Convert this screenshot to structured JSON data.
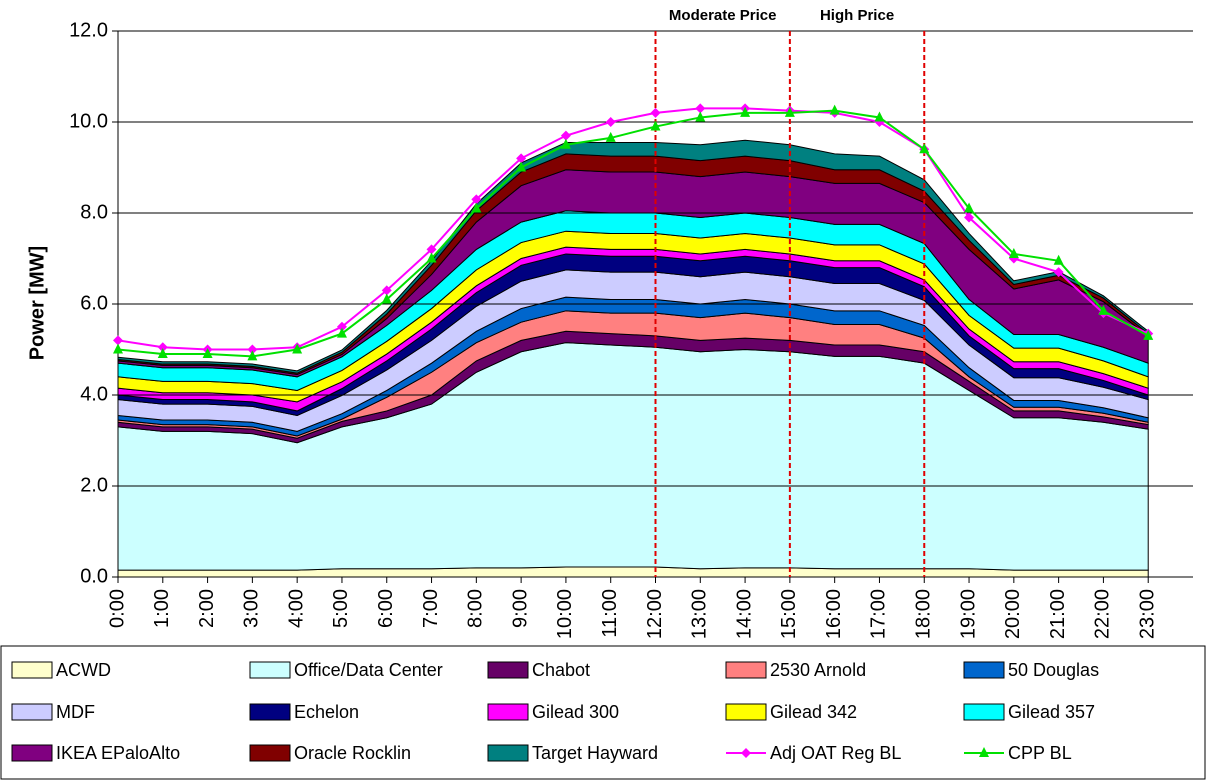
{
  "chart_data": {
    "type": "stacked_area",
    "y_label": "Power [MW]",
    "categories": [
      "0:00",
      "1:00",
      "2:00",
      "3:00",
      "4:00",
      "5:00",
      "6:00",
      "7:00",
      "8:00",
      "9:00",
      "10:00",
      "11:00",
      "12:00",
      "13:00",
      "14:00",
      "15:00",
      "16:00",
      "17:00",
      "18:00",
      "19:00",
      "20:00",
      "21:00",
      "22:00",
      "23:00"
    ],
    "ylim": [
      0,
      12
    ],
    "yticks": [
      {
        "value": 0,
        "label": "0.0"
      },
      {
        "value": 2,
        "label": "2.0"
      },
      {
        "value": 4,
        "label": "4.0"
      },
      {
        "value": 6,
        "label": "6.0"
      },
      {
        "value": 8,
        "label": "8.0"
      },
      {
        "value": 10,
        "label": "10.0"
      },
      {
        "value": 12,
        "label": "12.0"
      }
    ],
    "grid": true,
    "annotations": [
      {
        "text": "Moderate Price",
        "from": "12:00",
        "to": "15:00"
      },
      {
        "text": "High Price",
        "from": "15:00",
        "to": "18:00"
      }
    ],
    "vlines": [
      "12:00",
      "15:00",
      "18:00"
    ],
    "vline_color": "#e00000",
    "series": [
      {
        "name": "ACWD",
        "color": "#ffffcc",
        "values": [
          0.15,
          0.15,
          0.15,
          0.15,
          0.15,
          0.18,
          0.18,
          0.18,
          0.2,
          0.2,
          0.22,
          0.22,
          0.22,
          0.18,
          0.2,
          0.2,
          0.18,
          0.18,
          0.18,
          0.18,
          0.15,
          0.15,
          0.15,
          0.15
        ]
      },
      {
        "name": "Office/Data Center",
        "color": "#ccffff",
        "values": [
          3.15,
          3.05,
          3.05,
          3.0,
          2.8,
          3.12,
          3.32,
          3.62,
          4.3,
          4.75,
          4.93,
          4.88,
          4.83,
          4.77,
          4.8,
          4.75,
          4.67,
          4.67,
          4.52,
          3.92,
          3.35,
          3.35,
          3.25,
          3.1
        ]
      },
      {
        "name": "Chabot",
        "color": "#660066",
        "values": [
          0.1,
          0.1,
          0.1,
          0.1,
          0.1,
          0.12,
          0.15,
          0.2,
          0.25,
          0.25,
          0.25,
          0.25,
          0.25,
          0.25,
          0.25,
          0.25,
          0.25,
          0.25,
          0.25,
          0.2,
          0.15,
          0.15,
          0.12,
          0.1
        ]
      },
      {
        "name": "2530 Arnold",
        "color": "#ff8080",
        "values": [
          0.05,
          0.05,
          0.05,
          0.05,
          0.05,
          0.05,
          0.3,
          0.5,
          0.4,
          0.4,
          0.45,
          0.45,
          0.5,
          0.5,
          0.55,
          0.5,
          0.45,
          0.45,
          0.3,
          0.1,
          0.08,
          0.08,
          0.08,
          0.05
        ]
      },
      {
        "name": "50 Douglas",
        "color": "#0066cc",
        "values": [
          0.1,
          0.1,
          0.1,
          0.1,
          0.1,
          0.12,
          0.15,
          0.2,
          0.25,
          0.3,
          0.3,
          0.3,
          0.3,
          0.3,
          0.3,
          0.3,
          0.3,
          0.3,
          0.28,
          0.2,
          0.15,
          0.15,
          0.12,
          0.1
        ]
      },
      {
        "name": "MDF",
        "color": "#ccccff",
        "values": [
          0.35,
          0.35,
          0.35,
          0.35,
          0.35,
          0.4,
          0.45,
          0.5,
          0.55,
          0.6,
          0.6,
          0.6,
          0.6,
          0.6,
          0.6,
          0.6,
          0.6,
          0.6,
          0.55,
          0.5,
          0.5,
          0.5,
          0.45,
          0.4
        ]
      },
      {
        "name": "Echelon",
        "color": "#000080",
        "values": [
          0.1,
          0.1,
          0.1,
          0.1,
          0.1,
          0.15,
          0.2,
          0.25,
          0.3,
          0.35,
          0.35,
          0.35,
          0.35,
          0.35,
          0.35,
          0.35,
          0.35,
          0.35,
          0.3,
          0.2,
          0.2,
          0.2,
          0.15,
          0.1
        ]
      },
      {
        "name": "Gilead 300",
        "color": "#ff00ff",
        "values": [
          0.15,
          0.15,
          0.15,
          0.15,
          0.2,
          0.15,
          0.15,
          0.15,
          0.15,
          0.15,
          0.15,
          0.15,
          0.15,
          0.15,
          0.15,
          0.15,
          0.15,
          0.15,
          0.15,
          0.15,
          0.15,
          0.15,
          0.15,
          0.15
        ]
      },
      {
        "name": "Gilead 342",
        "color": "#ffff00",
        "values": [
          0.25,
          0.25,
          0.25,
          0.25,
          0.25,
          0.25,
          0.28,
          0.3,
          0.35,
          0.35,
          0.35,
          0.35,
          0.35,
          0.35,
          0.35,
          0.35,
          0.35,
          0.35,
          0.35,
          0.3,
          0.3,
          0.3,
          0.28,
          0.25
        ]
      },
      {
        "name": "Gilead 357",
        "color": "#00ffff",
        "values": [
          0.3,
          0.3,
          0.3,
          0.3,
          0.3,
          0.3,
          0.35,
          0.4,
          0.45,
          0.45,
          0.45,
          0.45,
          0.45,
          0.45,
          0.45,
          0.45,
          0.45,
          0.45,
          0.45,
          0.35,
          0.3,
          0.3,
          0.3,
          0.3
        ]
      },
      {
        "name": "IKEA EPaloAlto",
        "color": "#800080",
        "values": [
          0.05,
          0.05,
          0.05,
          0.05,
          0.05,
          0.05,
          0.15,
          0.35,
          0.6,
          0.8,
          0.9,
          0.9,
          0.9,
          0.9,
          0.9,
          0.9,
          0.9,
          0.9,
          0.9,
          1.1,
          1.0,
          1.2,
          1.0,
          0.6
        ]
      },
      {
        "name": "Oracle Rocklin",
        "color": "#800000",
        "values": [
          0.03,
          0.03,
          0.03,
          0.03,
          0.03,
          0.05,
          0.1,
          0.2,
          0.25,
          0.3,
          0.35,
          0.35,
          0.35,
          0.35,
          0.35,
          0.35,
          0.3,
          0.3,
          0.25,
          0.2,
          0.1,
          0.1,
          0.08,
          0.05
        ]
      },
      {
        "name": "Target Hayward",
        "color": "#008080",
        "values": [
          0.05,
          0.05,
          0.05,
          0.05,
          0.05,
          0.05,
          0.08,
          0.1,
          0.15,
          0.2,
          0.25,
          0.3,
          0.3,
          0.35,
          0.35,
          0.35,
          0.35,
          0.3,
          0.25,
          0.15,
          0.08,
          0.08,
          0.05,
          0.05
        ]
      }
    ],
    "lines": [
      {
        "name": "Adj OAT Reg BL",
        "color": "#ff00ff",
        "marker": "diamond",
        "values": [
          5.2,
          5.05,
          5.0,
          5.0,
          5.05,
          5.5,
          6.3,
          7.2,
          8.3,
          9.2,
          9.7,
          10.0,
          10.2,
          10.3,
          10.3,
          10.25,
          10.2,
          10.0,
          9.4,
          7.9,
          7.0,
          6.7,
          5.8,
          5.35
        ]
      },
      {
        "name": "CPP BL",
        "color": "#00e000",
        "marker": "triangle",
        "values": [
          5.0,
          4.9,
          4.9,
          4.85,
          5.0,
          5.35,
          6.1,
          7.0,
          8.1,
          9.0,
          9.5,
          9.65,
          9.9,
          10.1,
          10.2,
          10.2,
          10.25,
          10.1,
          9.4,
          8.1,
          7.1,
          6.95,
          5.85,
          5.3
        ]
      }
    ]
  }
}
